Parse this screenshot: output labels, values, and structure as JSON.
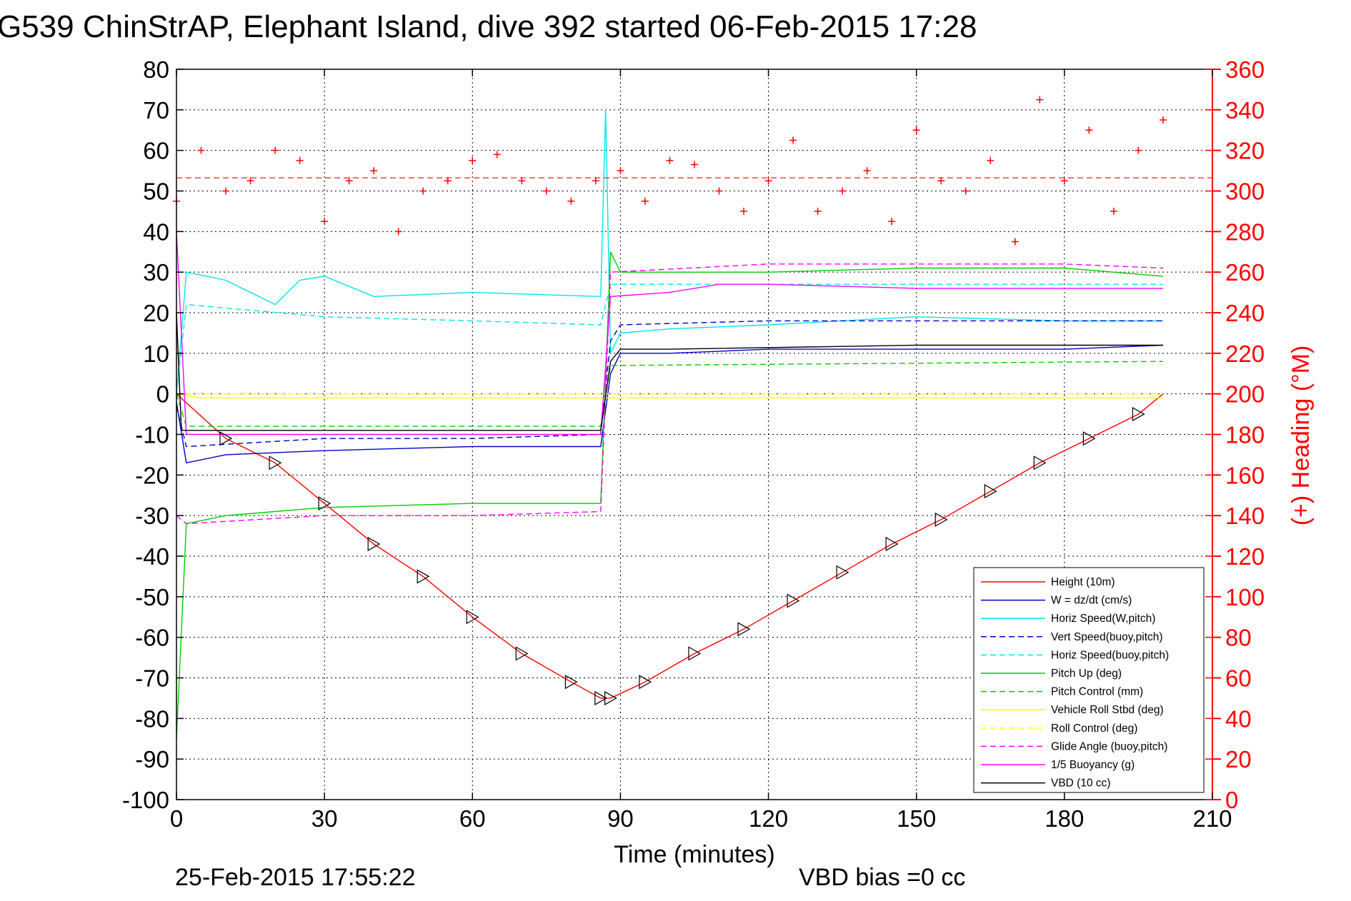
{
  "page": {
    "title": "G539 ChinStrAP, Elephant Island, dive 392 started 06-Feb-2015 17:28",
    "footer_left": "25-Feb-2015 17:55:22",
    "footer_right": "VBD bias =0 cc"
  },
  "colors": {
    "height": "#ff0000",
    "w": "#0000cc",
    "horiz_speed": "#00e5e5",
    "pitch": "#00cc00",
    "roll": "#ffff00",
    "glide": "#ff00ff",
    "vbd": "#000000",
    "heading": "#ff0000"
  },
  "chart_data": {
    "type": "line",
    "title": "G539 ChinStrAP, Elephant Island, dive 392 started 06-Feb-2015 17:28",
    "xlabel": "Time (minutes)",
    "ylabel": "",
    "ylabel_right": "(+) Heading (°M)",
    "xlim": [
      0,
      210
    ],
    "ylim": [
      -100,
      80
    ],
    "ylim_right": [
      0,
      360
    ],
    "x_ticks": [
      "0",
      "30",
      "60",
      "90",
      "120",
      "150",
      "180",
      "210"
    ],
    "y_ticks": [
      "80",
      "70",
      "60",
      "50",
      "40",
      "30",
      "20",
      "10",
      "0",
      "-10",
      "-20",
      "-30",
      "-40",
      "-50",
      "-60",
      "-70",
      "-80",
      "-90",
      "-100"
    ],
    "y_right_ticks": [
      "360",
      "340",
      "320",
      "300",
      "280",
      "260",
      "240",
      "220",
      "200",
      "180",
      "160",
      "140",
      "120",
      "100",
      "80",
      "60",
      "40",
      "20",
      "0"
    ],
    "grid": true,
    "legend_position": "lower-right",
    "series": [
      {
        "name": "Height (10m)",
        "color": "#ff0000",
        "style": "solid",
        "x": [
          0,
          10,
          20,
          30,
          40,
          50,
          60,
          70,
          80,
          86,
          88,
          95,
          105,
          115,
          125,
          135,
          145,
          155,
          165,
          175,
          185,
          195,
          200
        ],
        "y": [
          0,
          -11,
          -17,
          -27,
          -37,
          -45,
          -55,
          -64,
          -71,
          -75,
          -75,
          -71,
          -64,
          -58,
          -51,
          -44,
          -37,
          -31,
          -24,
          -17,
          -11,
          -5,
          0
        ]
      },
      {
        "name": "W = dz/dt (cm/s)",
        "color": "#0000cc",
        "style": "solid",
        "x": [
          0,
          2,
          10,
          30,
          60,
          86,
          88,
          90,
          100,
          120,
          150,
          180,
          200
        ],
        "y": [
          -2,
          -17,
          -15,
          -14,
          -13,
          -13,
          5,
          10,
          10,
          11,
          11,
          11,
          12
        ]
      },
      {
        "name": "Horiz Speed(W,pitch)",
        "color": "#00e5e5",
        "style": "solid",
        "x": [
          0,
          2,
          10,
          20,
          25,
          30,
          40,
          60,
          86,
          87,
          88,
          90,
          100,
          120,
          150,
          180,
          200
        ],
        "y": [
          0,
          30,
          28,
          22,
          28,
          29,
          24,
          25,
          24,
          70,
          10,
          15,
          16,
          17,
          19,
          18,
          18
        ]
      },
      {
        "name": "Vert Speed(buoy,pitch)",
        "color": "#0000cc",
        "style": "dashed",
        "x": [
          0,
          2,
          30,
          60,
          86,
          88,
          90,
          120,
          150,
          180,
          200
        ],
        "y": [
          -3,
          -13,
          -11,
          -11,
          -10,
          13,
          17,
          18,
          18,
          18,
          18
        ]
      },
      {
        "name": "Horiz Speed(buoy,pitch)",
        "color": "#00e5e5",
        "style": "dashed",
        "x": [
          0,
          2,
          30,
          60,
          86,
          88,
          100,
          120,
          150,
          180,
          200
        ],
        "y": [
          0,
          22,
          19,
          18,
          17,
          27,
          27,
          27,
          27,
          27,
          27
        ]
      },
      {
        "name": "Pitch Up (deg)",
        "color": "#00cc00",
        "style": "solid",
        "x": [
          0,
          2,
          10,
          30,
          60,
          86,
          88,
          90,
          120,
          150,
          180,
          200
        ],
        "y": [
          -85,
          -32,
          -30,
          -28,
          -27,
          -27,
          35,
          30,
          30,
          31,
          31,
          29
        ]
      },
      {
        "name": "Pitch Control (mm)",
        "color": "#00cc00",
        "style": "dashed",
        "x": [
          0,
          2,
          86,
          88,
          200
        ],
        "y": [
          0,
          -8,
          -8,
          7,
          8
        ]
      },
      {
        "name": "Vehicle Roll Stbd (deg)",
        "color": "#ffff00",
        "style": "solid",
        "x": [
          0,
          5,
          20,
          40,
          60,
          80,
          86,
          90,
          120,
          150,
          180,
          200
        ],
        "y": [
          0,
          -1,
          -1,
          -1,
          -1,
          -1,
          -1,
          -1,
          -1,
          -1,
          -1,
          -1
        ]
      },
      {
        "name": "Roll Control (deg)",
        "color": "#ffff00",
        "style": "dashed",
        "x": [
          0,
          86,
          88,
          200
        ],
        "y": [
          0,
          0,
          0,
          0
        ]
      },
      {
        "name": "Glide Angle (buoy,pitch)",
        "color": "#ff00ff",
        "style": "dashed",
        "x": [
          0,
          2,
          30,
          60,
          86,
          88,
          120,
          150,
          180,
          200
        ],
        "y": [
          -30,
          -32,
          -30,
          -30,
          -29,
          30,
          32,
          32,
          32,
          31
        ]
      },
      {
        "name": "1/5 Buoyancy (g)",
        "color": "#ff00ff",
        "style": "solid",
        "x": [
          0,
          2,
          86,
          88,
          100,
          110,
          120,
          150,
          180,
          200
        ],
        "y": [
          40,
          -10,
          -10,
          24,
          25,
          27,
          27,
          26,
          26,
          26
        ]
      },
      {
        "name": "VBD (10 cc)",
        "color": "#000000",
        "style": "solid",
        "x": [
          0,
          1,
          86,
          88,
          90,
          100,
          150,
          180,
          200
        ],
        "y": [
          20,
          -9,
          -9,
          8,
          11,
          11,
          12,
          12,
          12
        ]
      },
      {
        "name": "Heading",
        "color": "#ff0000",
        "style": "markers",
        "axis": "right",
        "x": [
          0,
          5,
          10,
          15,
          20,
          25,
          30,
          35,
          40,
          45,
          50,
          55,
          60,
          65,
          70,
          75,
          80,
          85,
          90,
          95,
          100,
          105,
          110,
          115,
          120,
          125,
          130,
          135,
          140,
          145,
          150,
          155,
          160,
          165,
          170,
          175,
          180,
          185,
          190,
          195,
          200
        ],
        "y": [
          295,
          320,
          300,
          305,
          320,
          315,
          285,
          305,
          310,
          280,
          300,
          305,
          315,
          318,
          305,
          300,
          295,
          305,
          310,
          295,
          315,
          313,
          300,
          290,
          305,
          325,
          290,
          300,
          310,
          285,
          330,
          305,
          300,
          315,
          275,
          345,
          305,
          330,
          290,
          320,
          335
        ]
      }
    ]
  },
  "legend_entries": [
    {
      "label": "Height (10m)",
      "color": "#ff0000",
      "dash": false
    },
    {
      "label": "W = dz/dt (cm/s)",
      "color": "#0000cc",
      "dash": false
    },
    {
      "label": "Horiz Speed(W,pitch)",
      "color": "#00e5e5",
      "dash": false
    },
    {
      "label": "Vert Speed(buoy,pitch)",
      "color": "#0000cc",
      "dash": true
    },
    {
      "label": "Horiz Speed(buoy,pitch)",
      "color": "#00e5e5",
      "dash": true
    },
    {
      "label": "Pitch Up (deg)",
      "color": "#00cc00",
      "dash": false
    },
    {
      "label": "Pitch Control (mm)",
      "color": "#00cc00",
      "dash": true
    },
    {
      "label": "Vehicle Roll Stbd (deg)",
      "color": "#ffff00",
      "dash": false
    },
    {
      "label": "Roll Control (deg)",
      "color": "#ffff00",
      "dash": true
    },
    {
      "label": "Glide Angle (buoy,pitch)",
      "color": "#ff00ff",
      "dash": true
    },
    {
      "label": "1/5 Buoyancy (g)",
      "color": "#ff00ff",
      "dash": false
    },
    {
      "label": "VBD (10 cc)",
      "color": "#000000",
      "dash": false
    }
  ]
}
